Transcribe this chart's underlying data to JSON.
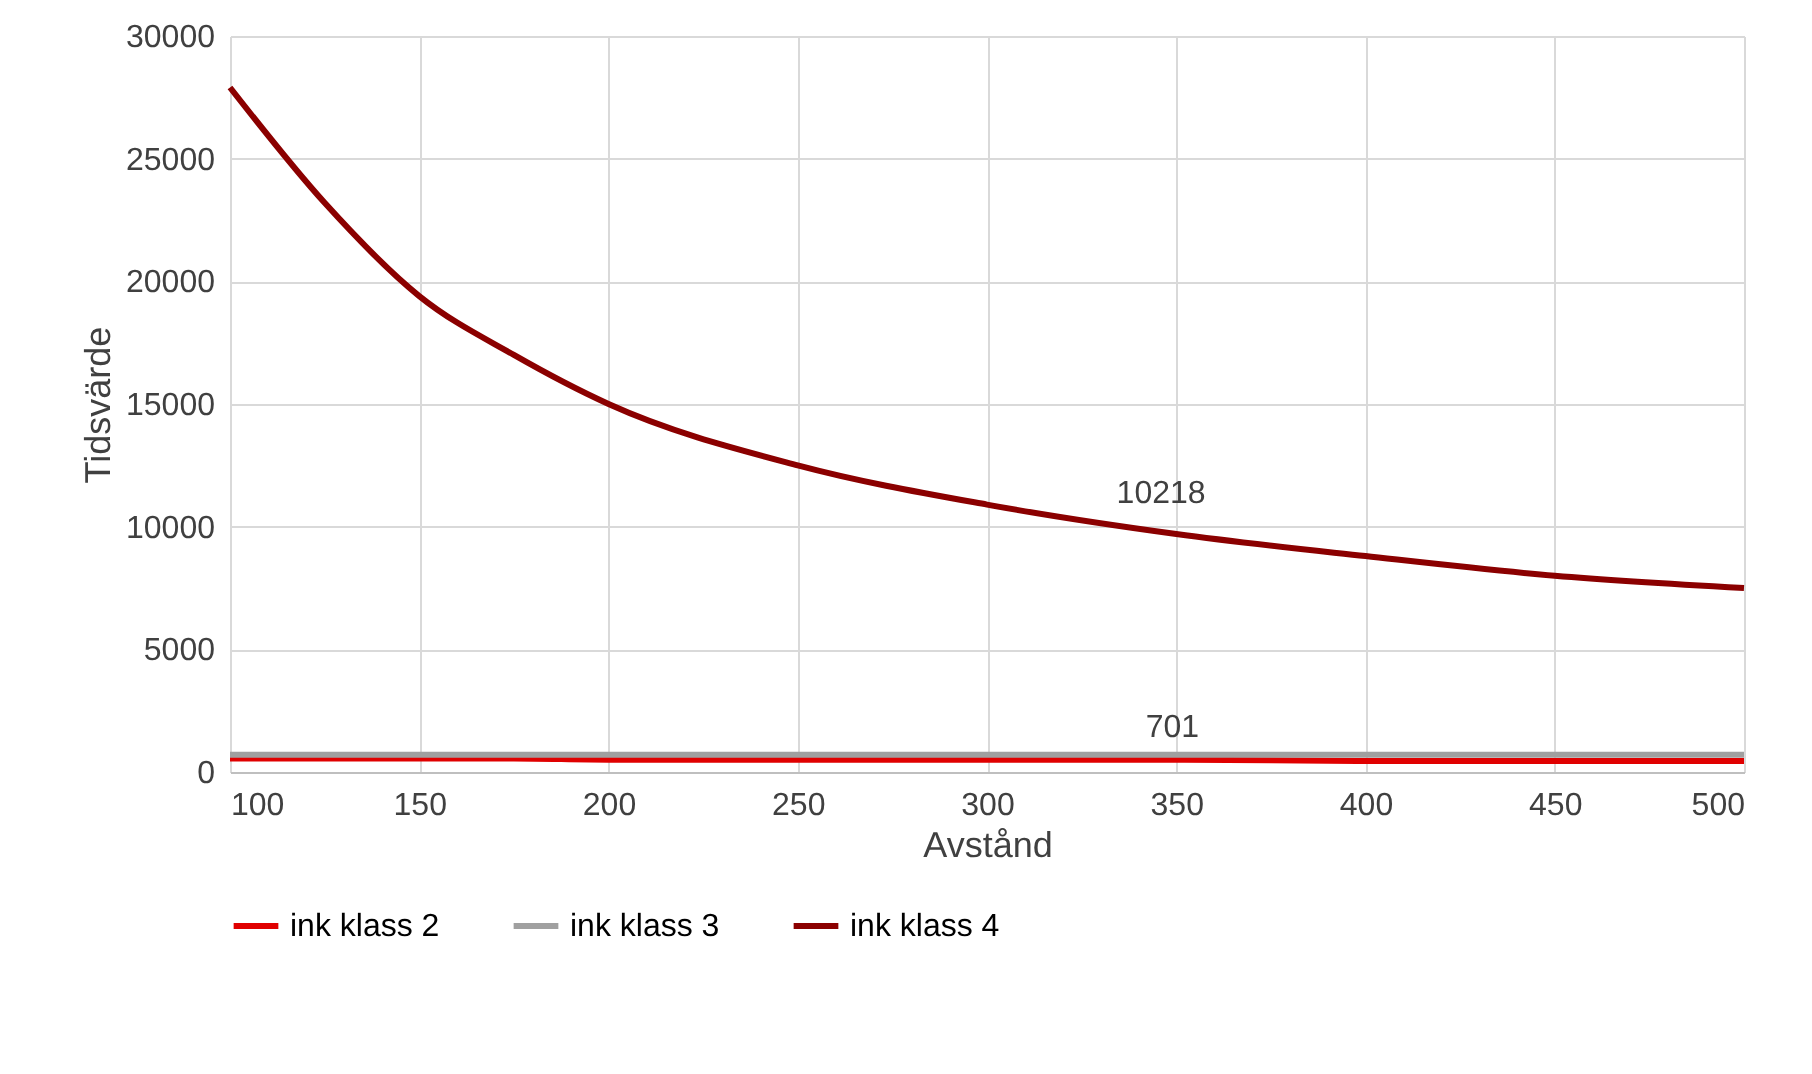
{
  "chart_data": {
    "type": "line",
    "xlabel": "Avstånd",
    "ylabel": "Tidsvärde",
    "x": [
      100,
      125,
      150,
      175,
      200,
      250,
      300,
      350,
      400,
      450,
      500
    ],
    "series": [
      {
        "name": "ink klass 2",
        "color": "#e00000",
        "values": [
          550,
          550,
          550,
          550,
          500,
          500,
          500,
          500,
          450,
          450,
          450
        ]
      },
      {
        "name": "ink klass 3",
        "color": "#a0a0a0",
        "values": [
          700,
          700,
          700,
          700,
          700,
          700,
          700,
          700,
          700,
          700,
          700
        ]
      },
      {
        "name": "ink klass 4",
        "color": "#8b0000",
        "values": [
          27900,
          23200,
          19400,
          17000,
          15000,
          12500,
          10900,
          9700,
          8800,
          8000,
          7500
        ]
      }
    ],
    "xlim": [
      100,
      500
    ],
    "xticks": [
      100,
      150,
      200,
      250,
      300,
      350,
      400,
      450,
      500
    ],
    "ylim": [
      0,
      30000
    ],
    "yticks": [
      0,
      5000,
      10000,
      15000,
      20000,
      25000,
      30000
    ],
    "annotations": [
      {
        "text": "10218",
        "x": 346,
        "y": 10218
      },
      {
        "text": "701",
        "x": 349,
        "y": 701
      }
    ],
    "grid": true,
    "legend": "bottom",
    "marker": "none",
    "line_style": "solid"
  }
}
